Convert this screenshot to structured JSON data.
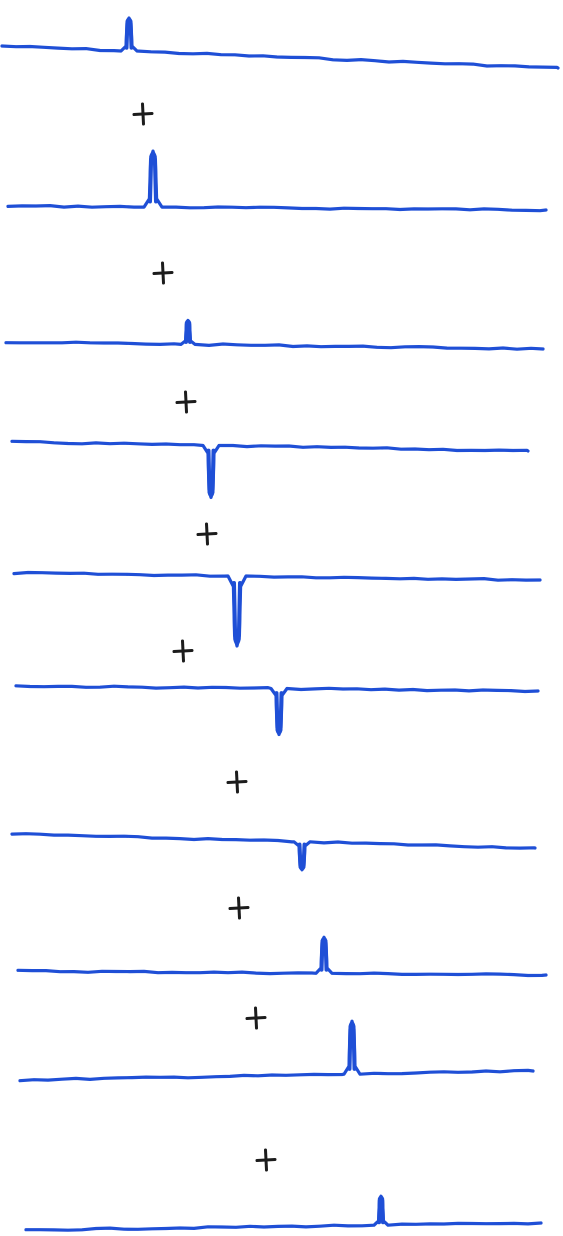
{
  "diagram": {
    "colors": {
      "trace": "#1f4fd6",
      "operator": "#1c1c1c",
      "background": "#ffffff"
    },
    "operator_symbol": "+",
    "traces": [
      {
        "pulse": "positive",
        "amplitude": "medium"
      },
      {
        "pulse": "positive",
        "amplitude": "large"
      },
      {
        "pulse": "positive",
        "amplitude": "small"
      },
      {
        "pulse": "negative",
        "amplitude": "large"
      },
      {
        "pulse": "negative",
        "amplitude": "large"
      },
      {
        "pulse": "negative",
        "amplitude": "medium"
      },
      {
        "pulse": "negative",
        "amplitude": "small"
      },
      {
        "pulse": "positive",
        "amplitude": "small"
      },
      {
        "pulse": "positive",
        "amplitude": "large"
      },
      {
        "pulse": "positive",
        "amplitude": "small"
      }
    ]
  }
}
